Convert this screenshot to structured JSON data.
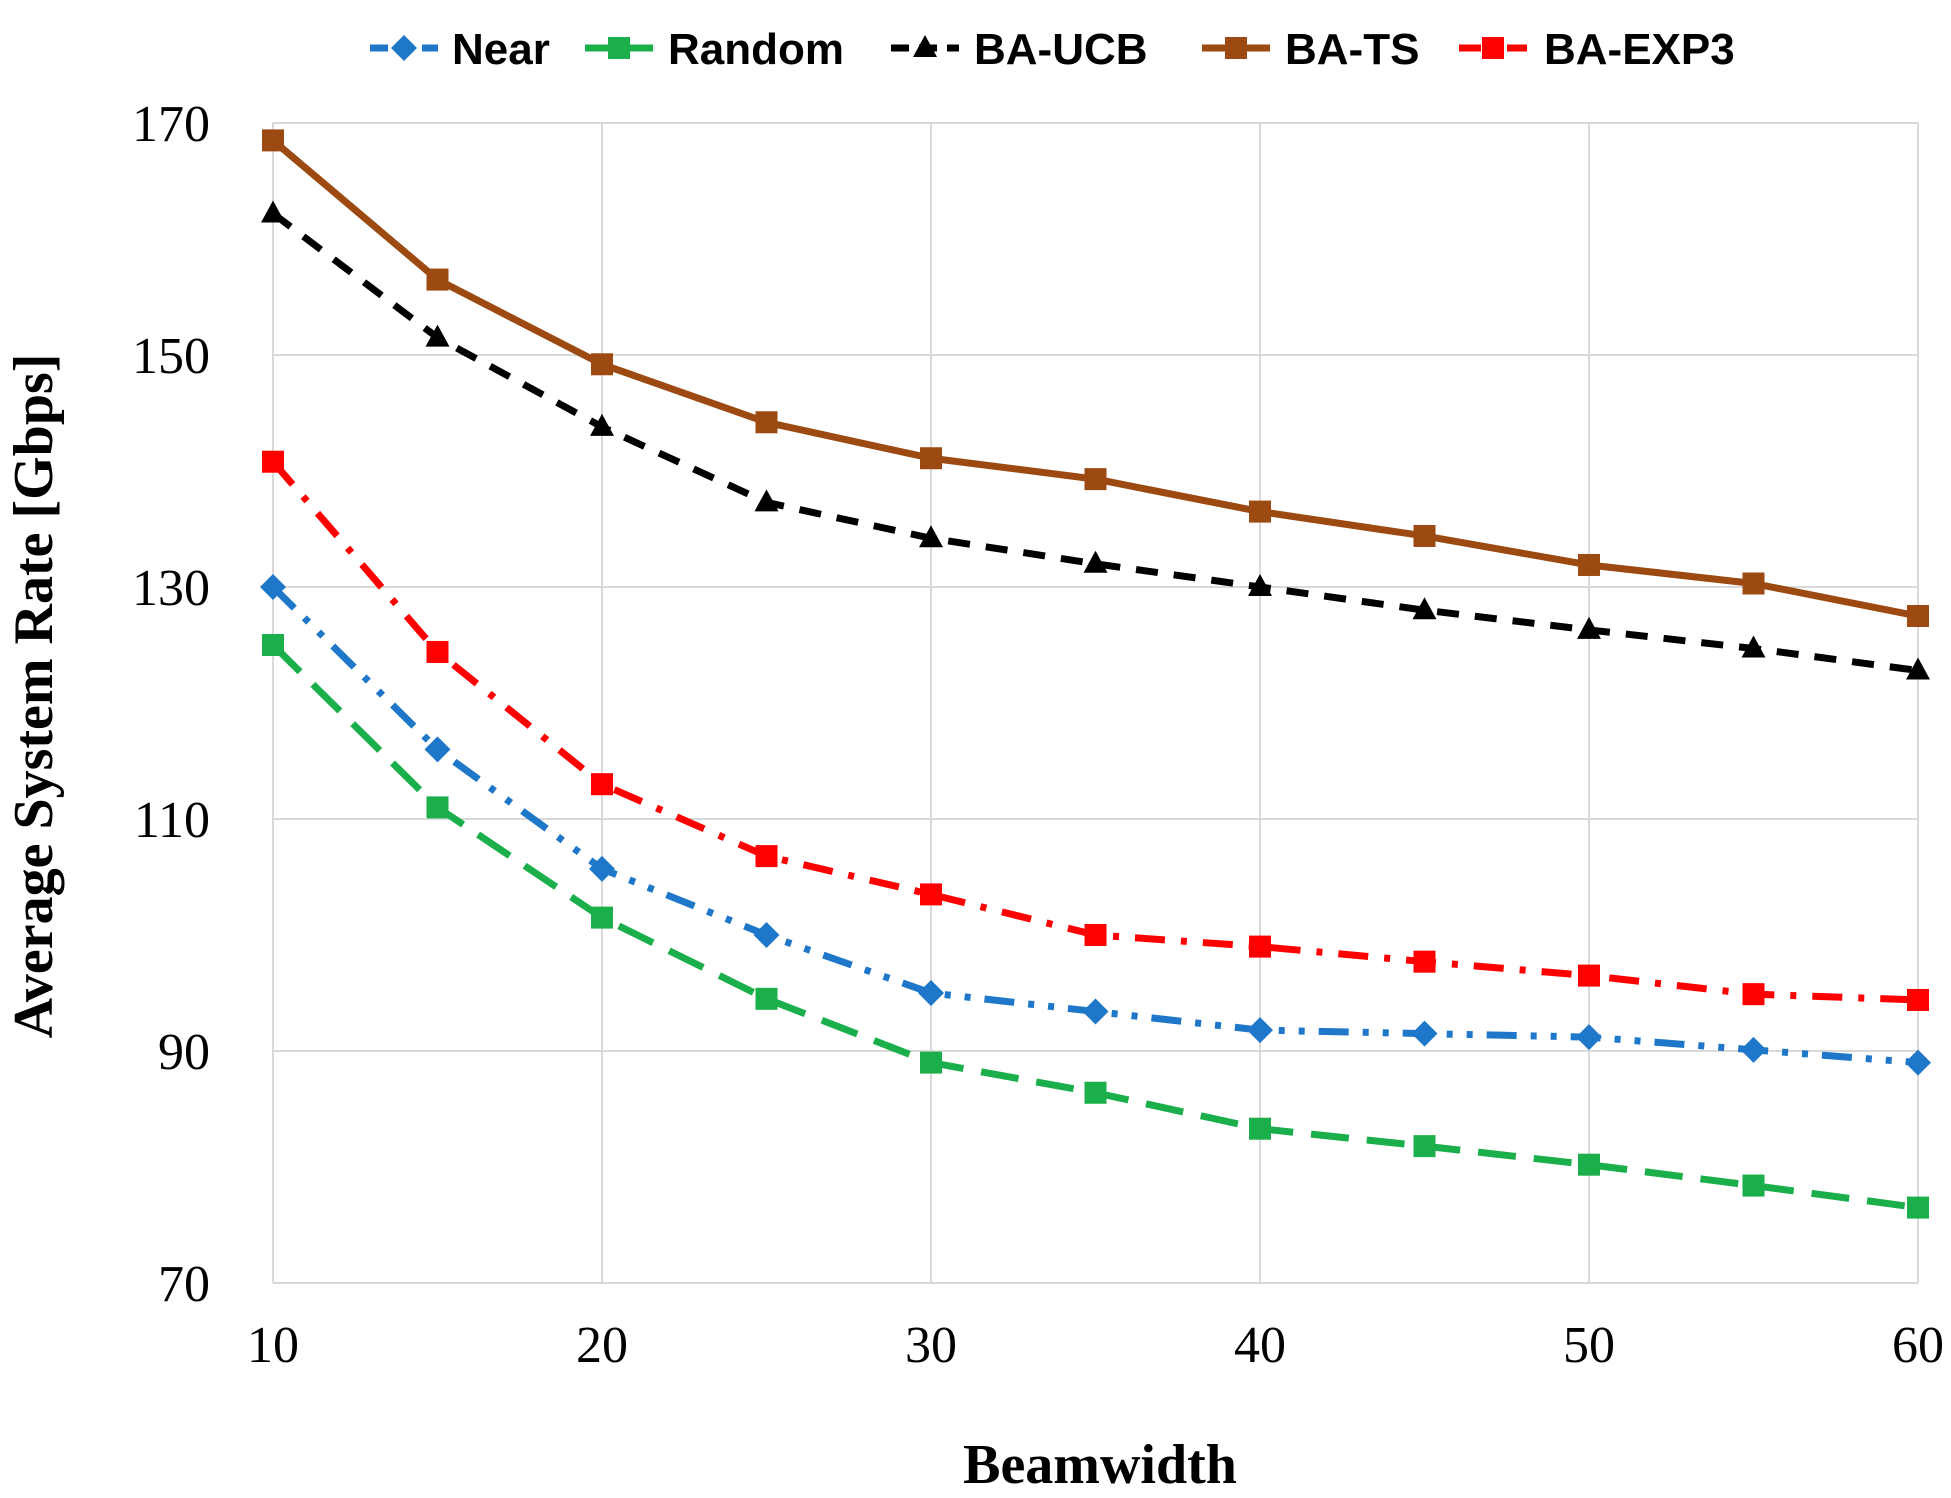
{
  "chart_data": {
    "type": "line",
    "title": "",
    "xlabel": "Beamwidth",
    "ylabel": "Average System Rate [Gbps]",
    "x": [
      10,
      15,
      20,
      25,
      30,
      35,
      40,
      45,
      50,
      55,
      60
    ],
    "xlim": [
      10,
      60
    ],
    "ylim": [
      70,
      170
    ],
    "xticks": [
      10,
      20,
      30,
      40,
      50,
      60
    ],
    "yticks": [
      70,
      90,
      110,
      130,
      150,
      170
    ],
    "xtick_labels": [
      "10",
      "20",
      "30",
      "40",
      "50",
      "60"
    ],
    "ytick_labels": [
      "70",
      "90",
      "110",
      "130",
      "150",
      "170"
    ],
    "grid": true,
    "legend_position": "top",
    "series": [
      {
        "name": "Near",
        "color": "#1F77C9",
        "marker": "diamond",
        "line_style": "dash-dot-dot",
        "values": [
          130.0,
          116.0,
          105.7,
          100.0,
          95.0,
          93.4,
          91.8,
          91.5,
          91.2,
          90.1,
          89.0
        ]
      },
      {
        "name": "Random",
        "color": "#1AAF4B",
        "marker": "square",
        "line_style": "long-dash",
        "values": [
          125.0,
          111.0,
          101.5,
          94.5,
          89.0,
          86.4,
          83.3,
          81.8,
          80.2,
          78.4,
          76.5
        ]
      },
      {
        "name": "BA-UCB",
        "color": "#000000",
        "marker": "triangle",
        "line_style": "dash",
        "values": [
          162.2,
          151.5,
          143.8,
          137.3,
          134.2,
          132.0,
          130.0,
          128.0,
          126.3,
          124.7,
          122.8
        ]
      },
      {
        "name": "BA-TS",
        "color": "#9C4A12",
        "marker": "square",
        "line_style": "solid",
        "values": [
          168.5,
          156.5,
          149.2,
          144.2,
          141.1,
          139.3,
          136.5,
          134.4,
          131.9,
          130.3,
          127.5
        ]
      },
      {
        "name": "BA-EXP3",
        "color": "#FF0000",
        "marker": "square",
        "line_style": "dash-dot",
        "values": [
          140.8,
          124.4,
          113.0,
          106.8,
          103.5,
          100.0,
          99.0,
          97.7,
          96.5,
          94.9,
          94.4
        ]
      }
    ]
  }
}
